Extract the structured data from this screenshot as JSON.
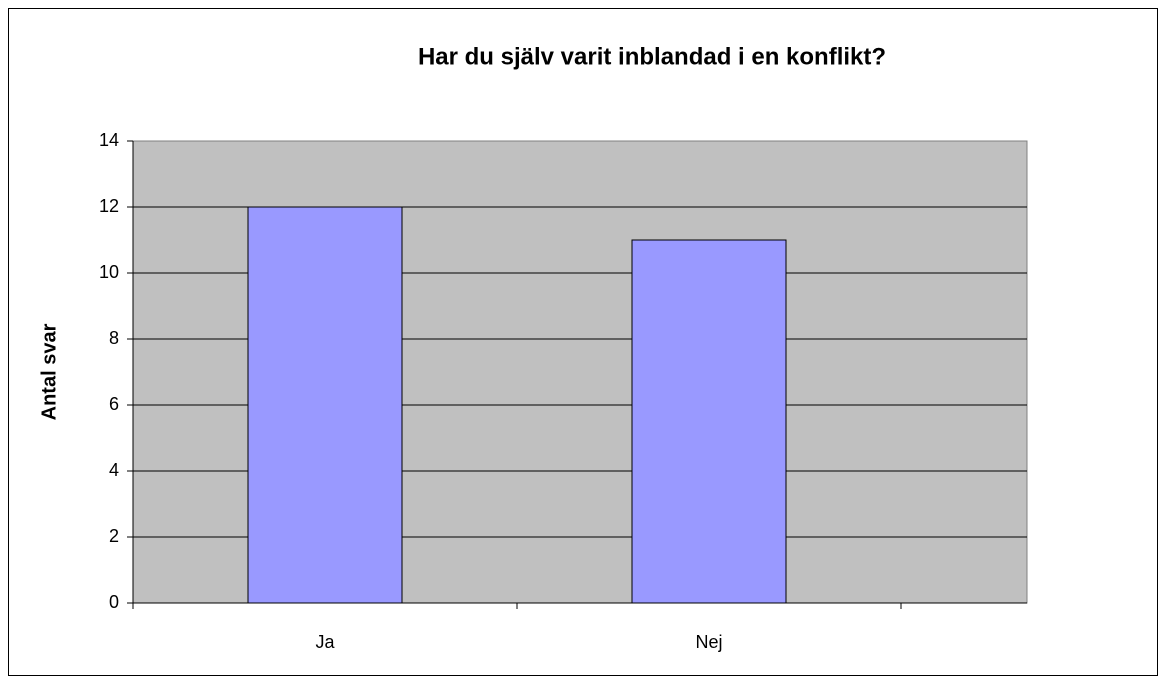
{
  "chart_data": {
    "type": "bar",
    "title": "Har du själv varit inblandad i en konflikt?",
    "y_label": "Antal svar",
    "categories": [
      "Ja",
      "Nej"
    ],
    "values": [
      12,
      11
    ],
    "color": "#9999ff",
    "ylim": [
      0,
      14
    ],
    "yticks": [
      0,
      2,
      4,
      6,
      8,
      10,
      12,
      14
    ],
    "grid": true
  }
}
